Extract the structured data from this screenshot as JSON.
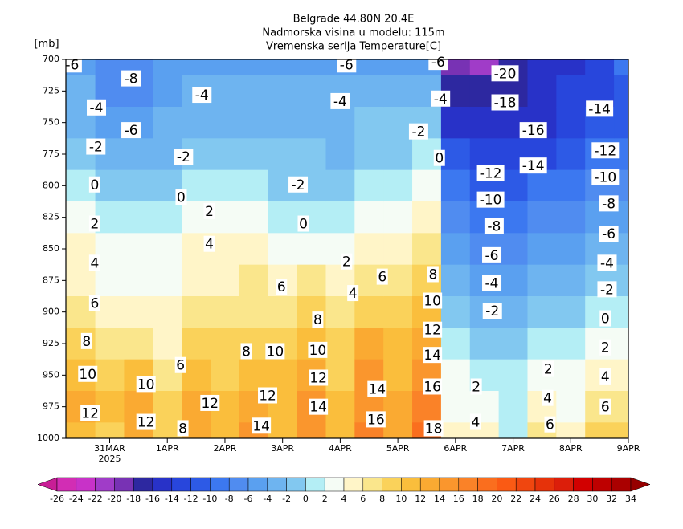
{
  "chart_data": {
    "type": "contour",
    "title": [
      "Belgrade  44.80N 20.4E",
      "Nadmorska visina u modelu: 115m",
      "Vremenska serija Temperature[C]"
    ],
    "y_label": "[mb]",
    "x_sublabel": "2025",
    "xlim": [
      0.24,
      10
    ],
    "xticks": [
      {
        "value": 1,
        "label": "31MAR"
      },
      {
        "value": 2,
        "label": "1APR"
      },
      {
        "value": 3,
        "label": "2APR"
      },
      {
        "value": 4,
        "label": "3APR"
      },
      {
        "value": 5,
        "label": "4APR"
      },
      {
        "value": 6,
        "label": "5APR"
      },
      {
        "value": 7,
        "label": "6APR"
      },
      {
        "value": 8,
        "label": "7APR"
      },
      {
        "value": 9,
        "label": "8APR"
      },
      {
        "value": 10,
        "label": "9APR"
      }
    ],
    "ylim": [
      1000,
      700
    ],
    "yticks": [
      700,
      725,
      750,
      775,
      800,
      825,
      850,
      875,
      900,
      925,
      950,
      975,
      1000
    ],
    "x": [
      0.5,
      1,
      1.5,
      2,
      2.5,
      3,
      3.5,
      4,
      4.5,
      5,
      5.5,
      6,
      6.5,
      7,
      7.5,
      8,
      8.5,
      9,
      9.5,
      10
    ],
    "y": [
      700,
      725,
      750,
      775,
      800,
      825,
      850,
      875,
      900,
      925,
      950,
      975,
      1000
    ],
    "z": [
      [
        -6,
        -4,
        -3,
        -2,
        0,
        2,
        4,
        5,
        6,
        8,
        10,
        12,
        11
      ],
      [
        -8,
        -7,
        -6,
        -4,
        -2,
        0,
        2,
        3,
        4,
        6,
        8,
        10,
        9
      ],
      [
        -8,
        -7,
        -5,
        -3,
        -1,
        1,
        2,
        3,
        5,
        7,
        10,
        12,
        13
      ],
      [
        -6,
        -5,
        -4,
        -3,
        -1,
        1,
        2,
        3,
        4,
        5,
        6,
        8,
        8
      ],
      [
        -5,
        -4,
        -3,
        -2,
        0,
        2,
        4,
        5,
        6,
        8,
        10,
        12,
        13
      ],
      [
        -5,
        -4,
        -3,
        -2,
        0,
        2,
        4,
        5,
        7,
        8,
        9,
        11,
        11
      ],
      [
        -5,
        -4,
        -3,
        -2,
        0,
        2,
        4,
        6,
        7,
        9,
        11,
        13,
        14
      ],
      [
        -5,
        -4,
        -3,
        -2,
        -1,
        1,
        3,
        5,
        7,
        9,
        10,
        11,
        10
      ],
      [
        -6,
        -4,
        -3,
        -2,
        -1,
        0,
        3,
        6,
        8,
        10,
        12,
        14,
        15
      ],
      [
        -6,
        -4,
        -4,
        -3,
        -2,
        0,
        2,
        4,
        6,
        8,
        9,
        10,
        10
      ],
      [
        -6,
        -4,
        -2,
        -1,
        1,
        3,
        5,
        7,
        9,
        12,
        14,
        15,
        16
      ],
      [
        -6,
        -4,
        -2,
        -1,
        1,
        3,
        5,
        6,
        8,
        10,
        11,
        12,
        12
      ],
      [
        -6,
        -4,
        -2,
        0,
        2,
        4,
        6,
        8,
        11,
        13,
        15,
        16,
        18
      ],
      [
        -19,
        -18,
        -15,
        -12,
        -10,
        -8,
        -6,
        -4,
        -2,
        0,
        2,
        3,
        4
      ],
      [
        -21,
        -18,
        -16,
        -13,
        -11,
        -9,
        -7,
        -5,
        -3,
        -1,
        1,
        3,
        5
      ],
      [
        -18,
        -17,
        -16,
        -14,
        -11,
        -9,
        -7,
        -5,
        -3,
        -1,
        0,
        1,
        1
      ],
      [
        -16,
        -16,
        -15,
        -13,
        -10,
        -7,
        -5,
        -3,
        -1,
        1,
        3,
        5,
        7
      ],
      [
        -15,
        -14,
        -13,
        -11,
        -9,
        -7,
        -5,
        -3,
        -2,
        0,
        2,
        3,
        4
      ],
      [
        -13,
        -14,
        -12,
        -10,
        -8,
        -6,
        -4,
        -2,
        0,
        2,
        4,
        6,
        8
      ],
      [
        -10,
        -12,
        -11,
        -9,
        -7,
        -5,
        -3,
        -1,
        1,
        3,
        5,
        7,
        9
      ]
    ],
    "levels": [
      -26,
      -24,
      -22,
      -20,
      -18,
      -16,
      -14,
      -12,
      -10,
      -8,
      -6,
      -4,
      -2,
      0,
      2,
      4,
      6,
      8,
      10,
      12,
      14,
      16,
      18,
      20,
      22,
      24,
      26,
      28,
      30,
      32,
      34
    ],
    "colors": [
      "#c81e96",
      "#d22db4",
      "#c832c8",
      "#a03cc8",
      "#7832b4",
      "#2d28a0",
      "#2832c8",
      "#2846dc",
      "#2d5ae6",
      "#3c78f0",
      "#508cf0",
      "#5aa0f0",
      "#6eb4f0",
      "#82c8f0",
      "#b4eef5",
      "#f5fcf5",
      "#fff5c8",
      "#fae68c",
      "#fad25a",
      "#fabe3c",
      "#faaa32",
      "#fa962d",
      "#fa8228",
      "#fa6e1e",
      "#fa5a14",
      "#f0460f",
      "#e6320a",
      "#dc1e0a",
      "#d20000",
      "#be0000",
      "#aa0000",
      "#960000"
    ],
    "contour_labels": [
      {
        "x": 0.35,
        "y": 704,
        "value": -6
      },
      {
        "x": 1.37,
        "y": 715,
        "value": -8
      },
      {
        "x": 0.77,
        "y": 738,
        "value": -4
      },
      {
        "x": 0.76,
        "y": 769,
        "value": -2
      },
      {
        "x": 0.74,
        "y": 799,
        "value": 0
      },
      {
        "x": 0.74,
        "y": 830,
        "value": 2
      },
      {
        "x": 0.74,
        "y": 861,
        "value": 4
      },
      {
        "x": 0.74,
        "y": 893,
        "value": 6
      },
      {
        "x": 0.6,
        "y": 923,
        "value": 8
      },
      {
        "x": 0.62,
        "y": 949,
        "value": 10
      },
      {
        "x": 0.66,
        "y": 980,
        "value": 12
      },
      {
        "x": 1.37,
        "y": 756,
        "value": -6
      },
      {
        "x": 2.28,
        "y": 777,
        "value": -2
      },
      {
        "x": 2.24,
        "y": 809,
        "value": 0
      },
      {
        "x": 2.73,
        "y": 820,
        "value": 2
      },
      {
        "x": 2.73,
        "y": 846,
        "value": 4
      },
      {
        "x": 2.23,
        "y": 942,
        "value": 6
      },
      {
        "x": 1.63,
        "y": 957,
        "value": 10
      },
      {
        "x": 1.63,
        "y": 987,
        "value": 12
      },
      {
        "x": 2.27,
        "y": 992,
        "value": 8
      },
      {
        "x": 2.6,
        "y": 728,
        "value": -4
      },
      {
        "x": 2.74,
        "y": 972,
        "value": 12
      },
      {
        "x": 3.63,
        "y": 990,
        "value": 14
      },
      {
        "x": 3.74,
        "y": 966,
        "value": 12
      },
      {
        "x": 3.37,
        "y": 931,
        "value": 8
      },
      {
        "x": 3.87,
        "y": 931,
        "value": 10
      },
      {
        "x": 3.98,
        "y": 880,
        "value": 6
      },
      {
        "x": 4.27,
        "y": 799,
        "value": -2
      },
      {
        "x": 4.36,
        "y": 830,
        "value": 0
      },
      {
        "x": 5.11,
        "y": 704,
        "value": -6
      },
      {
        "x": 5.0,
        "y": 733,
        "value": -4
      },
      {
        "x": 5.11,
        "y": 860,
        "value": 2
      },
      {
        "x": 5.22,
        "y": 885,
        "value": 4
      },
      {
        "x": 4.61,
        "y": 906,
        "value": 8
      },
      {
        "x": 4.61,
        "y": 930,
        "value": 10
      },
      {
        "x": 4.62,
        "y": 952,
        "value": 12
      },
      {
        "x": 4.62,
        "y": 975,
        "value": 14
      },
      {
        "x": 5.73,
        "y": 872,
        "value": 6
      },
      {
        "x": 5.64,
        "y": 961,
        "value": 14
      },
      {
        "x": 5.62,
        "y": 985,
        "value": 16
      },
      {
        "x": 6.7,
        "y": 702,
        "value": -6
      },
      {
        "x": 6.74,
        "y": 731,
        "value": -4
      },
      {
        "x": 6.36,
        "y": 757,
        "value": -2
      },
      {
        "x": 6.72,
        "y": 778,
        "value": 0
      },
      {
        "x": 6.61,
        "y": 870,
        "value": 8
      },
      {
        "x": 6.6,
        "y": 891,
        "value": 10
      },
      {
        "x": 6.6,
        "y": 914,
        "value": 12
      },
      {
        "x": 6.6,
        "y": 934,
        "value": 14
      },
      {
        "x": 6.6,
        "y": 959,
        "value": 16
      },
      {
        "x": 6.62,
        "y": 992,
        "value": 18
      },
      {
        "x": 7.36,
        "y": 959,
        "value": 2
      },
      {
        "x": 7.35,
        "y": 987,
        "value": 4
      },
      {
        "x": 7.86,
        "y": 711,
        "value": -20
      },
      {
        "x": 7.86,
        "y": 734,
        "value": -18
      },
      {
        "x": 8.35,
        "y": 756,
        "value": -16
      },
      {
        "x": 8.35,
        "y": 784,
        "value": -14
      },
      {
        "x": 7.61,
        "y": 790,
        "value": -12
      },
      {
        "x": 7.61,
        "y": 811,
        "value": -10
      },
      {
        "x": 7.67,
        "y": 832,
        "value": -8
      },
      {
        "x": 7.63,
        "y": 855,
        "value": -6
      },
      {
        "x": 7.63,
        "y": 877,
        "value": -4
      },
      {
        "x": 7.64,
        "y": 899,
        "value": -2
      },
      {
        "x": 8.61,
        "y": 945,
        "value": 2
      },
      {
        "x": 8.6,
        "y": 968,
        "value": 4
      },
      {
        "x": 8.64,
        "y": 989,
        "value": 6
      },
      {
        "x": 9.5,
        "y": 739,
        "value": -14
      },
      {
        "x": 9.6,
        "y": 772,
        "value": -12
      },
      {
        "x": 9.6,
        "y": 793,
        "value": -10
      },
      {
        "x": 9.66,
        "y": 814,
        "value": -8
      },
      {
        "x": 9.66,
        "y": 838,
        "value": -6
      },
      {
        "x": 9.63,
        "y": 861,
        "value": -4
      },
      {
        "x": 9.63,
        "y": 882,
        "value": -2
      },
      {
        "x": 9.6,
        "y": 905,
        "value": 0
      },
      {
        "x": 9.6,
        "y": 928,
        "value": 2
      },
      {
        "x": 9.6,
        "y": 951,
        "value": 4
      },
      {
        "x": 9.6,
        "y": 975,
        "value": 6
      }
    ]
  }
}
